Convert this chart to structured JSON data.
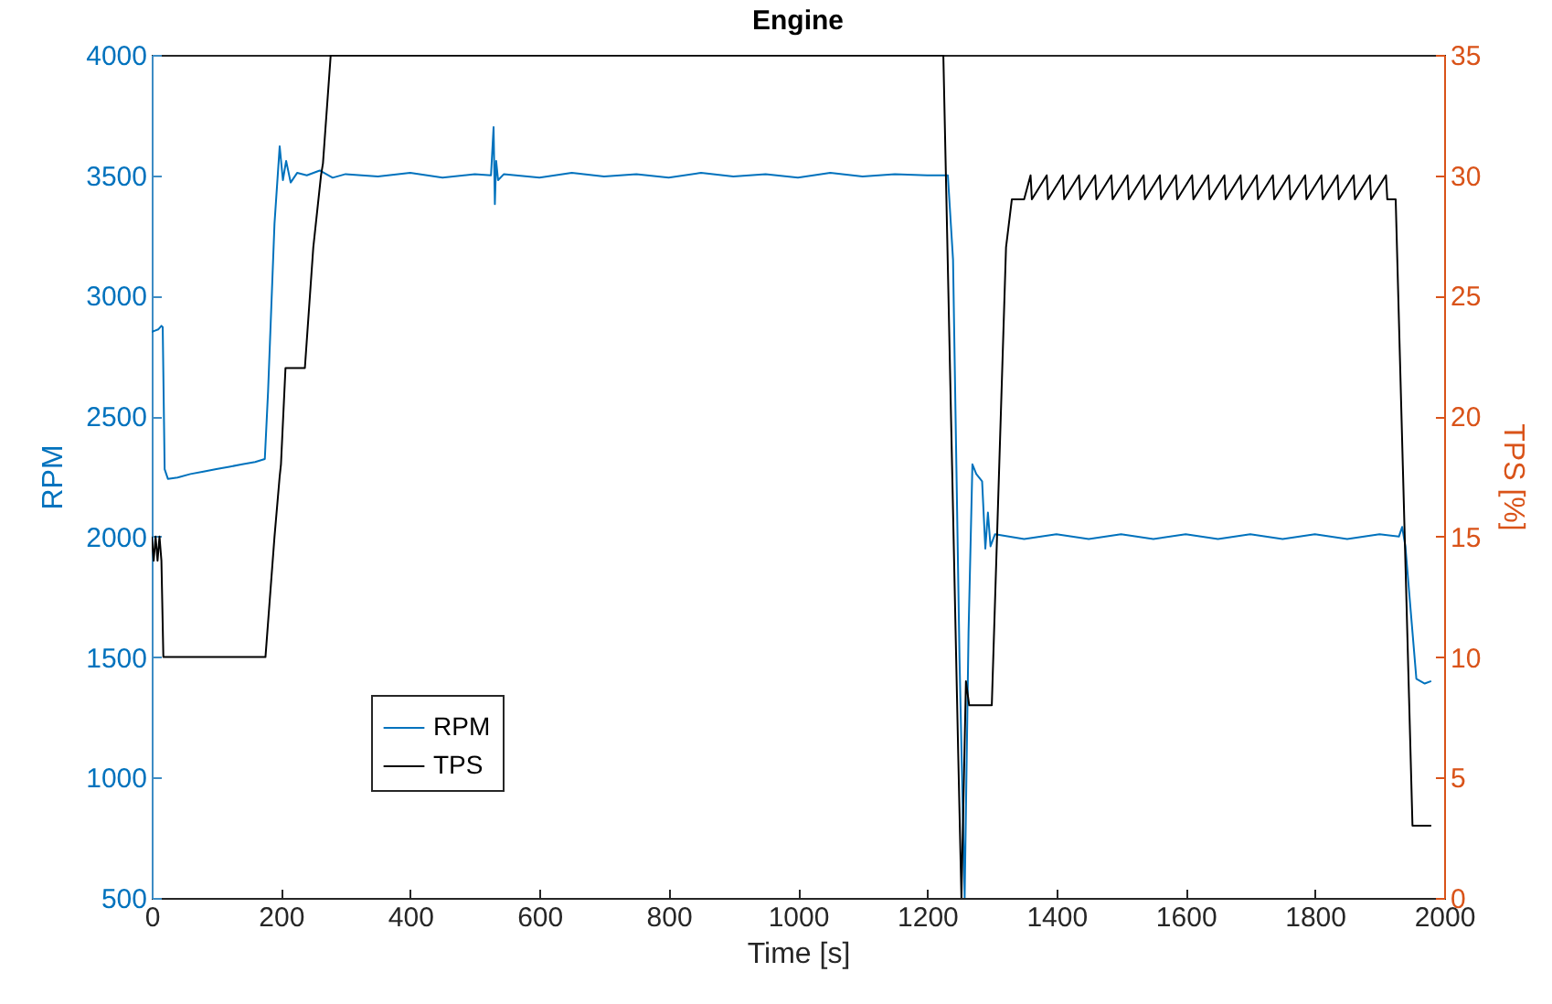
{
  "chart_data": {
    "type": "line",
    "title": "Engine",
    "xlabel": "Time [s]",
    "ylabel": "RPM",
    "y2label": "TPS [%]",
    "xlim": [
      0,
      2000
    ],
    "xticks": [
      0,
      200,
      400,
      600,
      800,
      1000,
      1200,
      1400,
      1600,
      1800,
      2000
    ],
    "ylim": [
      500,
      4000
    ],
    "yticks": [
      500,
      1000,
      1500,
      2000,
      2500,
      3000,
      3500,
      4000
    ],
    "y2lim": [
      0,
      35
    ],
    "y2ticks": [
      0,
      5,
      10,
      15,
      20,
      25,
      30,
      35
    ],
    "legend": "bottom left",
    "grid": false,
    "series": [
      {
        "name": "RPM",
        "color": "#0072bd",
        "x": [
          0,
          5,
          10,
          15,
          17,
          20,
          25,
          40,
          60,
          80,
          100,
          120,
          140,
          160,
          175,
          180,
          190,
          198,
          203,
          208,
          215,
          225,
          240,
          260,
          280,
          300,
          350,
          400,
          450,
          500,
          525,
          529,
          531,
          533,
          536,
          545,
          600,
          650,
          700,
          750,
          800,
          850,
          900,
          950,
          1000,
          1050,
          1100,
          1150,
          1200,
          1232,
          1240,
          1250,
          1258,
          1264,
          1270,
          1276,
          1285,
          1290,
          1294,
          1298,
          1305,
          1350,
          1400,
          1450,
          1500,
          1550,
          1600,
          1650,
          1700,
          1750,
          1800,
          1850,
          1900,
          1930,
          1935,
          1940,
          1948,
          1957,
          1970,
          1980
        ],
        "values": [
          2850,
          2855,
          2860,
          2875,
          2870,
          2280,
          2240,
          2245,
          2260,
          2270,
          2280,
          2290,
          2300,
          2310,
          2322,
          2600,
          3300,
          3620,
          3480,
          3560,
          3470,
          3510,
          3500,
          3520,
          3490,
          3505,
          3495,
          3510,
          3490,
          3505,
          3500,
          3700,
          3380,
          3560,
          3480,
          3505,
          3490,
          3510,
          3495,
          3505,
          3490,
          3510,
          3495,
          3505,
          3490,
          3510,
          3495,
          3505,
          3500,
          3500,
          3150,
          1500,
          500,
          1600,
          2300,
          2260,
          2230,
          1950,
          2100,
          1960,
          2010,
          1990,
          2010,
          1990,
          2010,
          1990,
          2010,
          1990,
          2010,
          1990,
          2010,
          1990,
          2010,
          2000,
          2040,
          1960,
          1700,
          1410,
          1390,
          1400
        ]
      },
      {
        "name": "TPS",
        "color": "#000000",
        "axis": "y2",
        "x": [
          0,
          3,
          6,
          9,
          12,
          15,
          18,
          20,
          176,
          190,
          198,
          200,
          207,
          237,
          250,
          262,
          265,
          277,
          1225,
          1248,
          1253,
          1260,
          1265,
          1268,
          1300,
          1322,
          1331,
          1350,
          1360,
          1362,
          1385,
          1387,
          1410,
          1412,
          1435,
          1437,
          1460,
          1462,
          1485,
          1487,
          1510,
          1512,
          1535,
          1537,
          1560,
          1562,
          1585,
          1587,
          1610,
          1612,
          1635,
          1637,
          1660,
          1662,
          1685,
          1687,
          1710,
          1712,
          1735,
          1737,
          1760,
          1762,
          1785,
          1787,
          1810,
          1812,
          1835,
          1837,
          1860,
          1862,
          1885,
          1887,
          1910,
          1912,
          1925,
          1951,
          1980
        ],
        "values": [
          15,
          14,
          15,
          14,
          15,
          14,
          10,
          10,
          10,
          15,
          17.5,
          18,
          22,
          22,
          27,
          30,
          30.5,
          35,
          35,
          6,
          0,
          9,
          8,
          8,
          8,
          27,
          29,
          29,
          30,
          29,
          30,
          29,
          30,
          29,
          30,
          29,
          30,
          29,
          30,
          29,
          30,
          29,
          30,
          29,
          30,
          29,
          30,
          29,
          30,
          29,
          30,
          29,
          30,
          29,
          30,
          29,
          30,
          29,
          30,
          29,
          30,
          29,
          30,
          29,
          30,
          29,
          30,
          29,
          30,
          29,
          30,
          29,
          30,
          29,
          29,
          3,
          3
        ]
      }
    ]
  }
}
